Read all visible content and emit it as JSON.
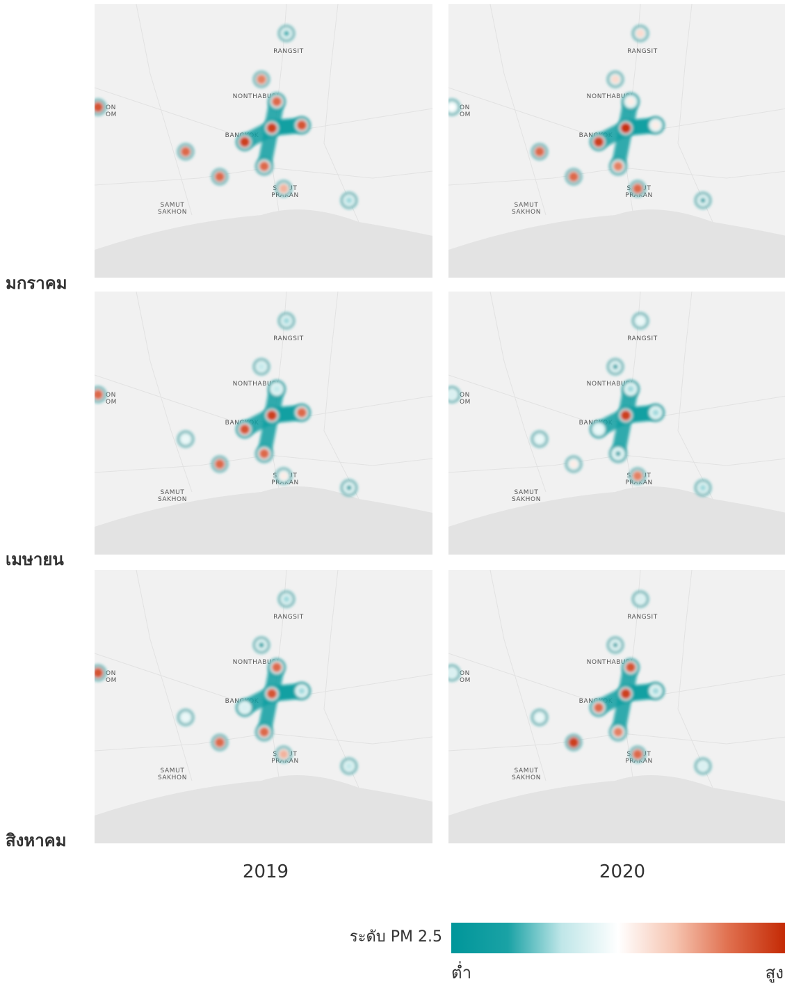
{
  "row_labels": [
    "มกราคม",
    "เมษายน",
    "สิงหาคม"
  ],
  "column_labels": [
    "2019",
    "2020"
  ],
  "place_labels": {
    "rangsit": "RANGSIT",
    "nonthaburi": "NONTHABURI",
    "bangkok": "BANGKOK",
    "samut_prakan_1": "SAMUT",
    "samut_prakan_2": "PRAKAN",
    "samut_sakhon_1": "SAMUT",
    "samut_sakhon_2": "SAKHON",
    "nakhon_pathom_1": "ON",
    "nakhon_pathom_2": "OM"
  },
  "legend": {
    "title": "ระดับ PM 2.5",
    "low_label": "ต่ำ",
    "high_label": "สูง",
    "colors": [
      "#00969a",
      "#1aa2a5",
      "#bfe6e8",
      "#ffffff",
      "#f6c4b0",
      "#e0704f",
      "#c42a05"
    ]
  },
  "colors": {
    "map_background": "#f1f1f1",
    "sea": "#e3e3e3",
    "low": "#0f9ea1",
    "high": "#d2411c"
  },
  "chart_data": {
    "type": "heatmap",
    "rows": [
      "มกราคม",
      "เมษายน",
      "สิงหาคม"
    ],
    "columns": [
      "2019",
      "2020"
    ],
    "scale": "ระดับ PM 2.5",
    "note_levels": "intensity 0 = ต่ำ (teal), 1 = สูง (red)",
    "sites": [
      "rangsit",
      "north_nonthaburi",
      "nonthaburi",
      "bangkok_west",
      "bangkok_center",
      "bangkok_east",
      "bangkok_south",
      "samut_prakan",
      "thonburi_west",
      "sakhon_north",
      "southeast",
      "nakhon_pathom"
    ],
    "panels": [
      {
        "row": "มกราคม",
        "year": "2019",
        "levels": {
          "rangsit": 0.2,
          "north_nonthaburi": 0.8,
          "nonthaburi": 0.85,
          "bangkok_west": 0.95,
          "bangkok_center": 0.95,
          "bangkok_east": 0.9,
          "bangkok_south": 0.85,
          "samut_prakan": 0.7,
          "thonburi_west": 0.85,
          "sakhon_north": 0.85,
          "southeast": 0.3,
          "nakhon_pathom": 0.9
        }
      },
      {
        "row": "มกราคม",
        "year": "2020",
        "levels": {
          "rangsit": 0.6,
          "north_nonthaburi": 0.6,
          "nonthaburi": 0.55,
          "bangkok_west": 0.95,
          "bangkok_center": 0.98,
          "bangkok_east": 0.55,
          "bangkok_south": 0.8,
          "samut_prakan": 0.85,
          "thonburi_west": 0.85,
          "sakhon_north": 0.85,
          "southeast": 0.1,
          "nakhon_pathom": 0.5
        }
      },
      {
        "row": "เมษายน",
        "year": "2019",
        "levels": {
          "rangsit": 0.3,
          "north_nonthaburi": 0.35,
          "nonthaburi": 0.35,
          "bangkok_west": 0.9,
          "bangkok_center": 0.95,
          "bangkok_east": 0.85,
          "bangkok_south": 0.85,
          "samut_prakan": 0.55,
          "thonburi_west": 0.85,
          "sakhon_north": 0.45,
          "southeast": 0.1,
          "nakhon_pathom": 0.85
        }
      },
      {
        "row": "เมษายน",
        "year": "2020",
        "levels": {
          "rangsit": 0.45,
          "north_nonthaburi": 0.1,
          "nonthaburi": 0.3,
          "bangkok_west": 0.45,
          "bangkok_center": 0.95,
          "bangkok_east": 0.3,
          "bangkok_south": 0.1,
          "samut_prakan": 0.8,
          "thonburi_west": 0.55,
          "sakhon_north": 0.45,
          "southeast": 0.3,
          "nakhon_pathom": 0.4
        }
      },
      {
        "row": "สิงหาคม",
        "year": "2019",
        "levels": {
          "rangsit": 0.3,
          "north_nonthaburi": 0.15,
          "nonthaburi": 0.85,
          "bangkok_west": 0.4,
          "bangkok_center": 0.9,
          "bangkok_east": 0.3,
          "bangkok_south": 0.85,
          "samut_prakan": 0.7,
          "thonburi_west": 0.85,
          "sakhon_north": 0.45,
          "southeast": 0.35,
          "nakhon_pathom": 0.9
        }
      },
      {
        "row": "สิงหาคม",
        "year": "2020",
        "levels": {
          "rangsit": 0.4,
          "north_nonthaburi": 0.05,
          "nonthaburi": 0.9,
          "bangkok_west": 0.85,
          "bangkok_center": 0.95,
          "bangkok_east": 0.3,
          "bangkok_south": 0.8,
          "samut_prakan": 0.85,
          "thonburi_west": 0.95,
          "sakhon_north": 0.45,
          "southeast": 0.4,
          "nakhon_pathom": 0.4
        }
      }
    ]
  }
}
